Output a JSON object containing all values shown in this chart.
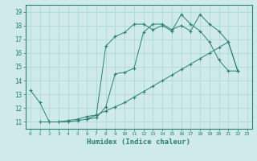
{
  "line1": {
    "x": [
      0,
      1,
      2,
      3,
      4,
      5,
      6,
      7,
      8,
      9,
      10,
      11,
      12,
      13,
      14,
      15,
      16,
      17,
      18,
      19,
      20,
      21,
      22
    ],
    "y": [
      13.3,
      12.4,
      11.0,
      11.0,
      11.0,
      11.1,
      11.2,
      11.3,
      12.1,
      14.5,
      14.6,
      14.9,
      17.5,
      18.1,
      18.1,
      17.7,
      18.0,
      17.6,
      18.8,
      18.1,
      17.6,
      16.8,
      14.7
    ]
  },
  "line2": {
    "x": [
      6,
      7,
      8,
      9,
      10,
      11,
      12,
      13,
      14,
      15,
      16,
      17,
      18,
      19,
      20,
      21,
      22
    ],
    "y": [
      11.2,
      11.5,
      16.5,
      17.2,
      17.5,
      18.1,
      18.1,
      17.7,
      18.0,
      17.6,
      18.8,
      18.1,
      17.6,
      16.8,
      15.5,
      14.7,
      14.7
    ]
  },
  "line3": {
    "x": [
      1,
      2,
      3,
      4,
      5,
      6,
      7,
      8,
      9,
      10,
      11,
      12,
      13,
      14,
      15,
      16,
      17,
      18,
      19,
      20,
      21,
      22
    ],
    "y": [
      11.0,
      11.0,
      11.0,
      11.1,
      11.2,
      11.4,
      11.5,
      11.8,
      12.1,
      12.4,
      12.8,
      13.2,
      13.6,
      14.0,
      14.4,
      14.8,
      15.2,
      15.6,
      16.0,
      16.4,
      16.8,
      14.7
    ]
  },
  "color": "#2d7f72",
  "bg_color": "#ceeaeb",
  "grid_color": "#b0d8d8",
  "xlabel": "Humidex (Indice chaleur)",
  "xlim": [
    -0.5,
    23.5
  ],
  "ylim": [
    10.5,
    19.5
  ],
  "xticks": [
    0,
    1,
    2,
    3,
    4,
    5,
    6,
    7,
    8,
    9,
    10,
    11,
    12,
    13,
    14,
    15,
    16,
    17,
    18,
    19,
    20,
    21,
    22,
    23
  ],
  "yticks": [
    11,
    12,
    13,
    14,
    15,
    16,
    17,
    18,
    19
  ]
}
